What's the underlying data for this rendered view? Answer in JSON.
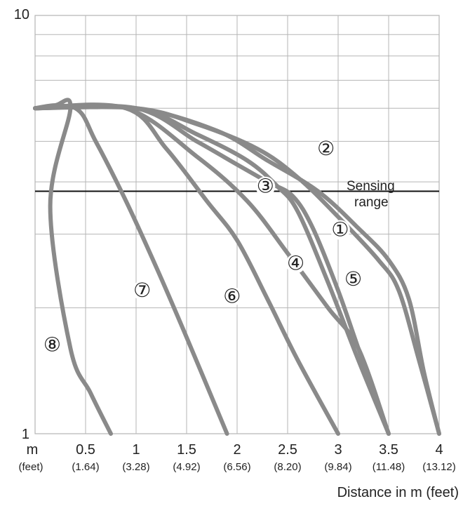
{
  "chart_data": {
    "type": "line",
    "xlabel": "Distance in m (feet)",
    "y_scale": "log",
    "xlim": [
      0,
      4
    ],
    "ylim": [
      1,
      10
    ],
    "x_unit_label": "m",
    "x_unit_sublabel": "(feet)",
    "x_ticks": [
      {
        "value": 0.5,
        "label": "0.5",
        "sublabel": "(1.64)"
      },
      {
        "value": 1,
        "label": "1",
        "sublabel": "(3.28)"
      },
      {
        "value": 1.5,
        "label": "1.5",
        "sublabel": "(4.92)"
      },
      {
        "value": 2,
        "label": "2",
        "sublabel": "(6.56)"
      },
      {
        "value": 2.5,
        "label": "2.5",
        "sublabel": "(8.20)"
      },
      {
        "value": 3,
        "label": "3",
        "sublabel": "(9.84)"
      },
      {
        "value": 3.5,
        "label": "3.5",
        "sublabel": "(11.48)"
      },
      {
        "value": 4,
        "label": "4",
        "sublabel": "(13.12)"
      }
    ],
    "y_ticks": [
      {
        "value": 1,
        "label": "1"
      },
      {
        "value": 10,
        "label": "10"
      }
    ],
    "grid": true,
    "line_color": "#8a8a8a",
    "grid_color": "#b5b5b5",
    "reference_line": {
      "y": 3.8,
      "label": [
        "Sensing",
        "range"
      ]
    },
    "series": [
      {
        "name": "①",
        "label_at": {
          "x": 3.02,
          "y": 3.07
        },
        "points": [
          [
            0,
            6
          ],
          [
            1,
            6
          ],
          [
            1.8,
            5.3
          ],
          [
            2.3,
            4.5
          ],
          [
            2.8,
            3.8
          ],
          [
            3.2,
            3.1
          ],
          [
            3.5,
            2.6
          ],
          [
            3.7,
            2.1
          ],
          [
            3.85,
            1.4
          ],
          [
            4,
            1
          ]
        ]
      },
      {
        "name": "②",
        "label_at": {
          "x": 2.88,
          "y": 4.8
        },
        "points": [
          [
            0,
            6
          ],
          [
            1,
            6
          ],
          [
            1.6,
            5.5
          ],
          [
            2.2,
            4.8
          ],
          [
            2.6,
            4.1
          ],
          [
            3,
            3.3
          ],
          [
            3.4,
            2.6
          ],
          [
            3.6,
            2.2
          ],
          [
            3.8,
            1.5
          ],
          [
            4,
            1
          ]
        ]
      },
      {
        "name": "③",
        "label_at": {
          "x": 2.28,
          "y": 3.9
        },
        "points": [
          [
            0,
            6
          ],
          [
            1,
            6
          ],
          [
            1.6,
            5.2
          ],
          [
            2.1,
            4.5
          ],
          [
            2.4,
            3.9
          ],
          [
            2.6,
            3.4
          ],
          [
            2.9,
            2.3
          ],
          [
            3.2,
            1.5
          ],
          [
            3.5,
            1
          ]
        ]
      },
      {
        "name": "④",
        "label_at": {
          "x": 2.58,
          "y": 2.55
        },
        "points": [
          [
            0,
            6
          ],
          [
            0.9,
            6
          ],
          [
            1.6,
            4.6
          ],
          [
            2.1,
            3.6
          ],
          [
            2.5,
            2.7
          ],
          [
            2.9,
            2
          ],
          [
            3.2,
            1.6
          ],
          [
            3.5,
            1
          ]
        ]
      },
      {
        "name": "⑤",
        "label_at": {
          "x": 3.15,
          "y": 2.34
        },
        "points": [
          [
            0,
            6
          ],
          [
            1,
            6
          ],
          [
            1.6,
            5
          ],
          [
            2,
            4.4
          ],
          [
            2.3,
            4
          ],
          [
            2.55,
            3.7
          ],
          [
            2.75,
            3.1
          ],
          [
            3,
            2.2
          ],
          [
            3.2,
            1.6
          ],
          [
            3.5,
            1
          ]
        ]
      },
      {
        "name": "⑥",
        "label_at": {
          "x": 1.95,
          "y": 2.13
        },
        "points": [
          [
            0,
            6
          ],
          [
            0.9,
            6
          ],
          [
            1.3,
            4.8
          ],
          [
            1.7,
            3.6
          ],
          [
            2,
            2.9
          ],
          [
            2.3,
            2.1
          ],
          [
            2.6,
            1.5
          ],
          [
            3,
            1
          ]
        ]
      },
      {
        "name": "⑦",
        "label_at": {
          "x": 1.06,
          "y": 2.2
        },
        "points": [
          [
            0,
            6
          ],
          [
            0.4,
            6
          ],
          [
            0.6,
            5
          ],
          [
            0.9,
            3.6
          ],
          [
            1.2,
            2.5
          ],
          [
            1.5,
            1.7
          ],
          [
            1.9,
            1
          ]
        ]
      },
      {
        "name": "⑧",
        "label_at": {
          "x": 0.17,
          "y": 1.63
        },
        "points": [
          [
            0,
            6
          ],
          [
            0.2,
            6.1
          ],
          [
            0.35,
            6
          ],
          [
            0.15,
            3.5
          ],
          [
            0.35,
            1.6
          ],
          [
            0.55,
            1.25
          ],
          [
            0.75,
            1
          ]
        ]
      }
    ]
  }
}
